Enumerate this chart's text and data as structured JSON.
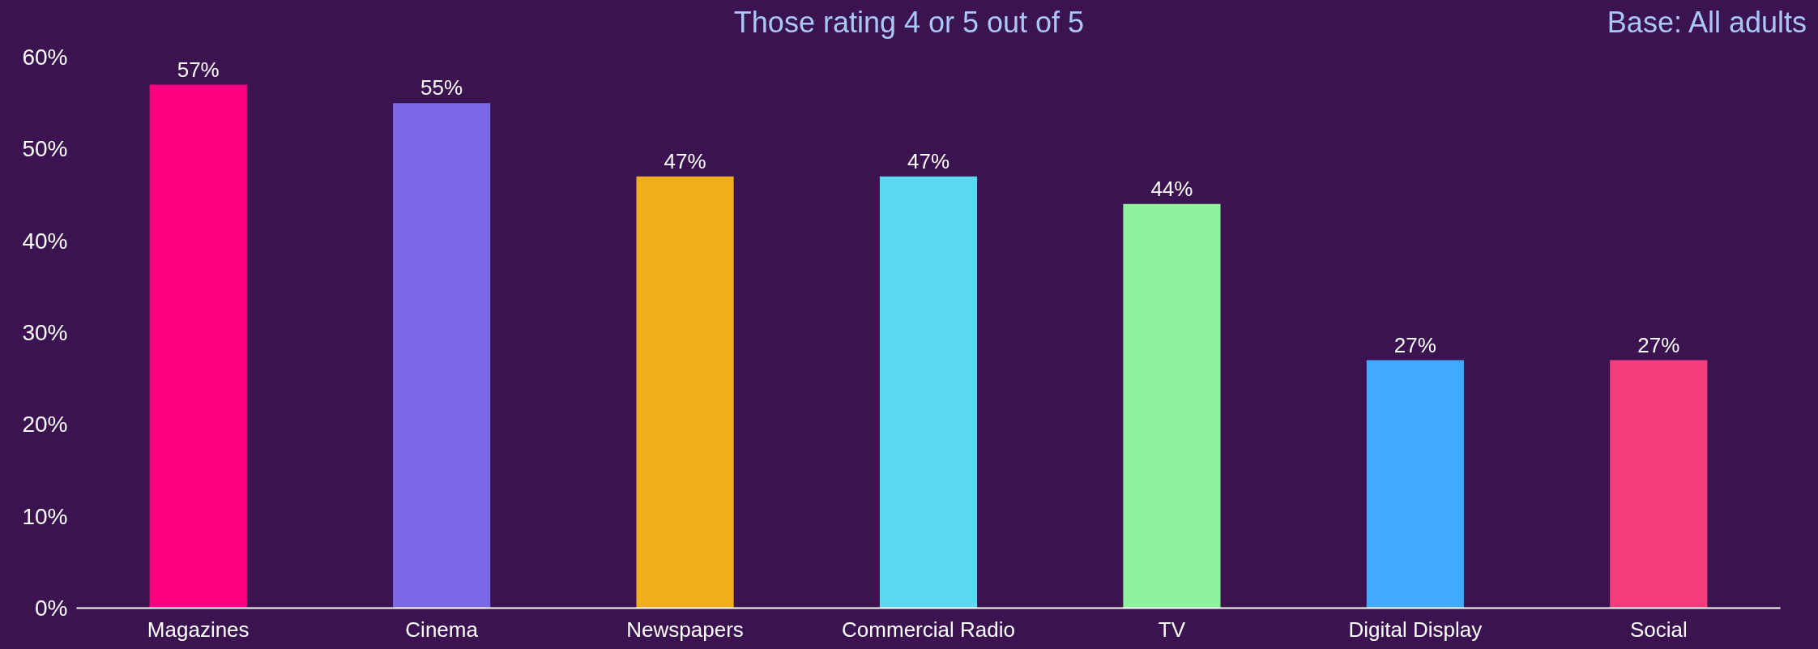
{
  "chart_data": {
    "type": "bar",
    "title": "Those rating 4 or 5 out of 5",
    "annotations": [
      "Base: All adults"
    ],
    "categories": [
      "Magazines",
      "Cinema",
      "Newspapers",
      "Commercial Radio",
      "TV",
      "Digital Display",
      "Social"
    ],
    "values": [
      57,
      55,
      47,
      47,
      44,
      27,
      27
    ],
    "colors": [
      "#ff0080",
      "#7b68e6",
      "#f0ad1c",
      "#5bd7ef",
      "#8ef29c",
      "#3fa9ff",
      "#f53d7d"
    ],
    "value_labels": [
      "57%",
      "55%",
      "47%",
      "47%",
      "44%",
      "27%",
      "27%"
    ],
    "ylim": [
      0,
      60
    ],
    "yticks": [
      {
        "value": 0,
        "label": "0%"
      },
      {
        "value": 10,
        "label": "10%"
      },
      {
        "value": 20,
        "label": "20%"
      },
      {
        "value": 30,
        "label": "30%"
      },
      {
        "value": 40,
        "label": "40%"
      },
      {
        "value": 50,
        "label": "50%"
      },
      {
        "value": 60,
        "label": "60%"
      }
    ],
    "grid": false
  }
}
